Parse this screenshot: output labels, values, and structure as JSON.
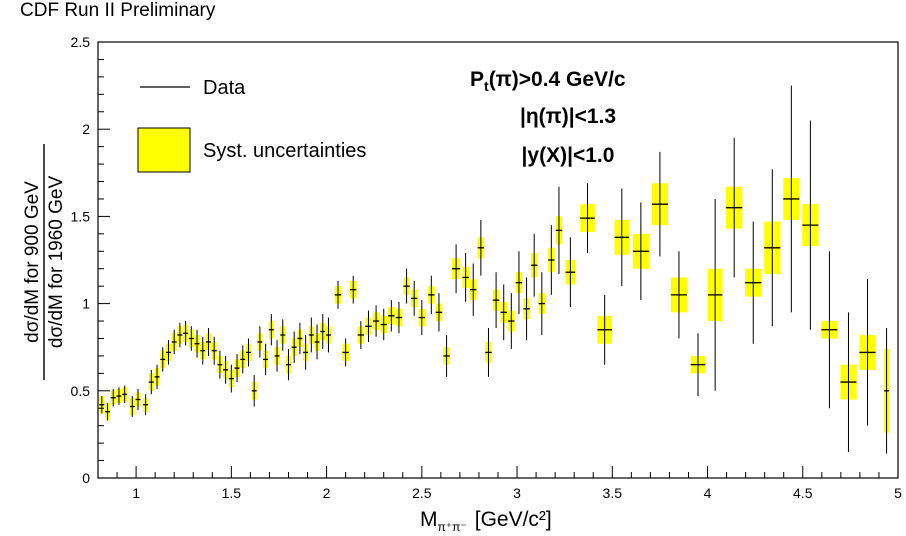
{
  "header": "CDF Run II Preliminary",
  "chart_data": {
    "type": "scatter",
    "xlabel": "M",
    "xlabel_sub": "π⁺π⁻",
    "xlabel_unit": "[GeV/c²]",
    "ylabel_num": "dσ/dM for 900 GeV",
    "ylabel_den": "dσ/dM for 1960 GeV",
    "xlim": [
      0.8,
      5.0
    ],
    "ylim": [
      0,
      2.5
    ],
    "x_ticks": [
      "1",
      "1.5",
      "2",
      "2.5",
      "3",
      "3.5",
      "4",
      "4.5",
      "5"
    ],
    "y_ticks": [
      "0",
      "0.5",
      "1",
      "1.5",
      "2",
      "2.5"
    ],
    "legend": [
      "Data",
      "Syst. uncertainties"
    ],
    "legend_position": "top-left",
    "cuts": [
      "Pt(π)>0.4 GeV/c",
      "|η(π)|<1.3",
      "|y(X)|<1.0"
    ],
    "colors": {
      "syst_fill": "#ffff00",
      "data": "#000000"
    },
    "points": [
      [
        0.82,
        0.42,
        0.05,
        0.05
      ],
      [
        0.85,
        0.38,
        0.05,
        0.05
      ],
      [
        0.88,
        0.46,
        0.05,
        0.04
      ],
      [
        0.91,
        0.47,
        0.05,
        0.04
      ],
      [
        0.94,
        0.48,
        0.05,
        0.04
      ],
      [
        0.98,
        0.41,
        0.06,
        0.05
      ],
      [
        1.01,
        0.45,
        0.06,
        0.04
      ],
      [
        1.05,
        0.42,
        0.06,
        0.04
      ],
      [
        1.08,
        0.55,
        0.07,
        0.05
      ],
      [
        1.11,
        0.58,
        0.07,
        0.05
      ],
      [
        1.14,
        0.68,
        0.07,
        0.05
      ],
      [
        1.17,
        0.72,
        0.07,
        0.05
      ],
      [
        1.2,
        0.78,
        0.07,
        0.05
      ],
      [
        1.23,
        0.82,
        0.07,
        0.05
      ],
      [
        1.26,
        0.83,
        0.07,
        0.05
      ],
      [
        1.29,
        0.8,
        0.07,
        0.05
      ],
      [
        1.32,
        0.77,
        0.08,
        0.05
      ],
      [
        1.35,
        0.73,
        0.08,
        0.05
      ],
      [
        1.38,
        0.78,
        0.08,
        0.05
      ],
      [
        1.41,
        0.73,
        0.08,
        0.05
      ],
      [
        1.44,
        0.65,
        0.08,
        0.05
      ],
      [
        1.47,
        0.62,
        0.08,
        0.05
      ],
      [
        1.5,
        0.57,
        0.08,
        0.05
      ],
      [
        1.53,
        0.63,
        0.08,
        0.05
      ],
      [
        1.56,
        0.68,
        0.08,
        0.05
      ],
      [
        1.59,
        0.72,
        0.08,
        0.05
      ],
      [
        1.62,
        0.5,
        0.09,
        0.05
      ],
      [
        1.65,
        0.78,
        0.09,
        0.05
      ],
      [
        1.68,
        0.68,
        0.09,
        0.05
      ],
      [
        1.71,
        0.85,
        0.09,
        0.05
      ],
      [
        1.74,
        0.7,
        0.09,
        0.05
      ],
      [
        1.77,
        0.82,
        0.09,
        0.05
      ],
      [
        1.8,
        0.65,
        0.09,
        0.05
      ],
      [
        1.83,
        0.75,
        0.09,
        0.05
      ],
      [
        1.86,
        0.8,
        0.09,
        0.05
      ],
      [
        1.89,
        0.72,
        0.1,
        0.05
      ],
      [
        1.92,
        0.82,
        0.1,
        0.05
      ],
      [
        1.95,
        0.78,
        0.1,
        0.05
      ],
      [
        1.98,
        0.84,
        0.1,
        0.05
      ],
      [
        2.01,
        0.82,
        0.1,
        0.05
      ],
      [
        2.06,
        1.05,
        0.08,
        0.05
      ],
      [
        2.1,
        0.72,
        0.08,
        0.05
      ],
      [
        2.14,
        1.08,
        0.08,
        0.05
      ],
      [
        2.18,
        0.82,
        0.08,
        0.05
      ],
      [
        2.22,
        0.87,
        0.09,
        0.05
      ],
      [
        2.26,
        0.9,
        0.09,
        0.05
      ],
      [
        2.3,
        0.88,
        0.09,
        0.05
      ],
      [
        2.34,
        0.93,
        0.09,
        0.05
      ],
      [
        2.38,
        0.92,
        0.09,
        0.05
      ],
      [
        2.42,
        1.1,
        0.1,
        0.05
      ],
      [
        2.46,
        1.03,
        0.1,
        0.05
      ],
      [
        2.5,
        0.92,
        0.1,
        0.05
      ],
      [
        2.55,
        1.05,
        0.11,
        0.05
      ],
      [
        2.59,
        0.95,
        0.11,
        0.05
      ],
      [
        2.63,
        0.7,
        0.12,
        0.05
      ],
      [
        2.68,
        1.2,
        0.14,
        0.06
      ],
      [
        2.73,
        1.15,
        0.14,
        0.06
      ],
      [
        2.77,
        1.08,
        0.15,
        0.06
      ],
      [
        2.81,
        1.32,
        0.16,
        0.06
      ],
      [
        2.85,
        0.72,
        0.14,
        0.06
      ],
      [
        2.89,
        1.02,
        0.16,
        0.06
      ],
      [
        2.93,
        0.95,
        0.16,
        0.06
      ],
      [
        2.97,
        0.9,
        0.16,
        0.06
      ],
      [
        3.01,
        1.12,
        0.18,
        0.06
      ],
      [
        3.05,
        0.97,
        0.18,
        0.06
      ],
      [
        3.09,
        1.22,
        0.18,
        0.07
      ],
      [
        3.13,
        1.0,
        0.18,
        0.06
      ],
      [
        3.18,
        1.25,
        0.2,
        0.07
      ],
      [
        3.22,
        1.42,
        0.25,
        0.08
      ],
      [
        3.28,
        1.18,
        0.2,
        0.07
      ],
      [
        3.37,
        1.49,
        0.2,
        0.08
      ],
      [
        3.46,
        0.85,
        0.2,
        0.08
      ],
      [
        3.55,
        1.38,
        0.28,
        0.1
      ],
      [
        3.65,
        1.3,
        0.28,
        0.1
      ],
      [
        3.75,
        1.57,
        0.3,
        0.12
      ],
      [
        3.85,
        1.05,
        0.25,
        0.1
      ],
      [
        3.95,
        0.65,
        0.18,
        0.05
      ],
      [
        4.04,
        1.05,
        0.55,
        0.15
      ],
      [
        4.14,
        1.55,
        0.4,
        0.12
      ],
      [
        4.24,
        1.12,
        0.35,
        0.08
      ],
      [
        4.34,
        1.32,
        0.45,
        0.15
      ],
      [
        4.44,
        1.6,
        0.65,
        0.12
      ],
      [
        4.54,
        1.45,
        0.6,
        0.12
      ],
      [
        4.64,
        0.85,
        0.45,
        0.05
      ],
      [
        4.74,
        0.55,
        0.4,
        0.1
      ],
      [
        4.84,
        0.72,
        0.42,
        0.1
      ],
      [
        4.94,
        0.5,
        0.36,
        0.24
      ]
    ]
  }
}
